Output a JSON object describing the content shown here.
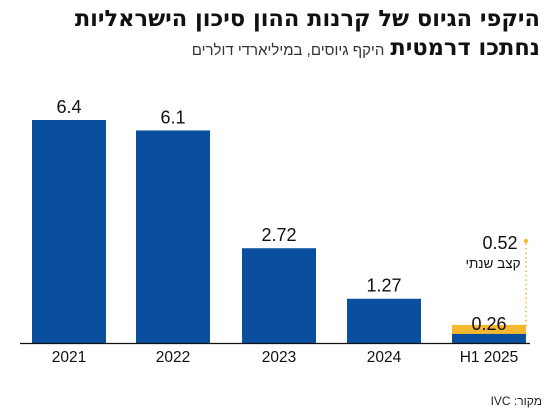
{
  "header": {
    "title_line1": "היקפי הגיוס של קרנות ההון סיכון הישראליות",
    "title_line2": "נחתכו דרמטית",
    "subtitle": "היקף גיוסים, במיליארדי דולרים"
  },
  "footer": {
    "source": "מקור: IVC"
  },
  "colors": {
    "bar": "#0a4f9e",
    "annual_pace": "#f5b82e",
    "axis": "#111111",
    "connector": "#f5b82e"
  },
  "chart_data": {
    "type": "bar",
    "categories": [
      "2021",
      "2022",
      "2023",
      "2024",
      "H1 2025"
    ],
    "values": [
      6.4,
      6.1,
      2.72,
      1.27,
      0.26
    ],
    "value_labels": [
      "6.4",
      "6.1",
      "2.72",
      "1.27",
      "0.26"
    ],
    "annual_pace": {
      "category": "H1 2025",
      "value": 0.52,
      "value_label": "0.52",
      "label": "קצב שנתי"
    },
    "ylim": [
      0,
      6.4
    ],
    "grid": false,
    "legend": "none"
  }
}
